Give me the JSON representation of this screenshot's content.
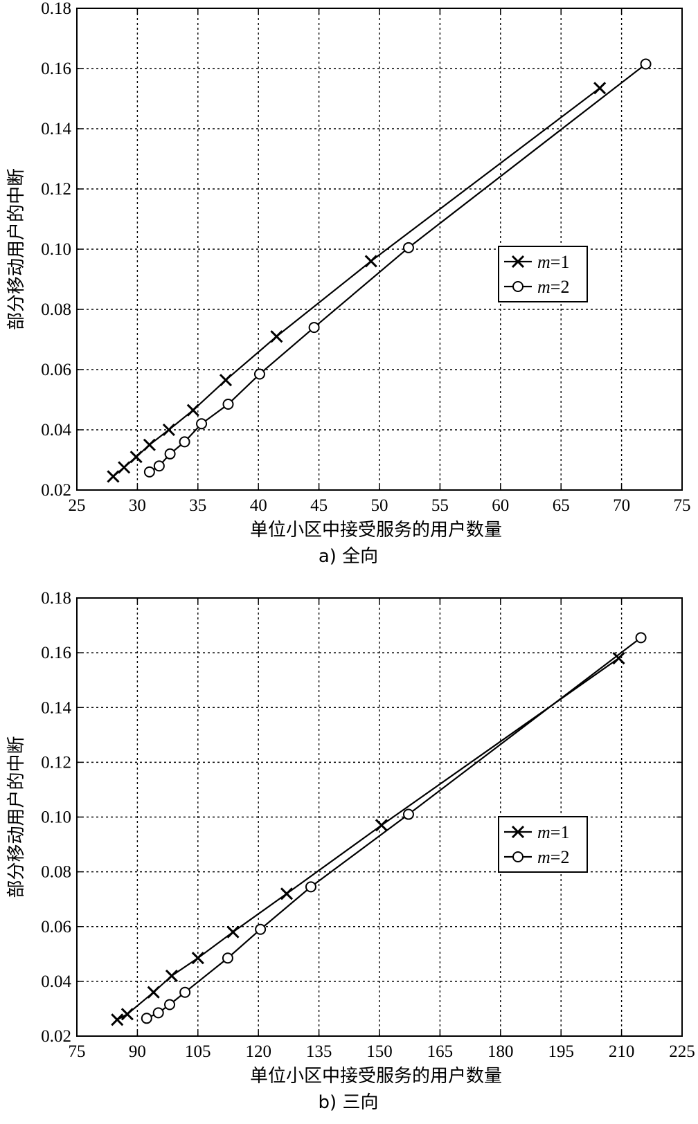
{
  "chart_data": [
    {
      "type": "line",
      "caption": "a) 全向",
      "xlabel": "单位小区中接受服务的用户数量",
      "ylabel": "部分移动用户的中断",
      "xlim": [
        25,
        75
      ],
      "ylim": [
        0.02,
        0.18
      ],
      "xticks": [
        25,
        30,
        35,
        40,
        45,
        50,
        55,
        60,
        65,
        70,
        75
      ],
      "yticks": [
        0.02,
        0.04,
        0.06,
        0.08,
        0.1,
        0.12,
        0.14,
        0.16,
        0.18
      ],
      "xtick_labels": [
        "25",
        "30",
        "35",
        "40",
        "45",
        "50",
        "55",
        "60",
        "65",
        "70",
        "75"
      ],
      "ytick_labels": [
        "0.02",
        "0.04",
        "0.06",
        "0.08",
        "0.10",
        "0.12",
        "0.14",
        "0.16",
        "0.18"
      ],
      "grid": true,
      "legend_position": "center-right",
      "series": [
        {
          "name_prefix": "m",
          "name_suffix": "=1",
          "marker": "x",
          "x": [
            28.0,
            28.9,
            29.9,
            31.0,
            32.6,
            34.6,
            37.3,
            41.5,
            49.3,
            68.2
          ],
          "y": [
            0.0245,
            0.0275,
            0.031,
            0.035,
            0.04,
            0.0465,
            0.0565,
            0.071,
            0.096,
            0.1535
          ]
        },
        {
          "name_prefix": "m",
          "name_suffix": "=2",
          "marker": "o",
          "x": [
            31.0,
            31.8,
            32.7,
            33.9,
            35.3,
            37.5,
            40.1,
            44.6,
            52.4,
            72.0
          ],
          "y": [
            0.026,
            0.028,
            0.032,
            0.036,
            0.042,
            0.0485,
            0.0585,
            0.074,
            0.1005,
            0.1615
          ]
        }
      ]
    },
    {
      "type": "line",
      "caption": "b) 三向",
      "xlabel": "单位小区中接受服务的用户数量",
      "ylabel": "部分移动用户的中断",
      "xlim": [
        75,
        225
      ],
      "ylim": [
        0.02,
        0.18
      ],
      "xticks": [
        75,
        90,
        105,
        120,
        135,
        150,
        165,
        180,
        195,
        210,
        225
      ],
      "yticks": [
        0.02,
        0.04,
        0.06,
        0.08,
        0.1,
        0.12,
        0.14,
        0.16,
        0.18
      ],
      "xtick_labels": [
        "75",
        "90",
        "105",
        "120",
        "135",
        "150",
        "165",
        "180",
        "195",
        "210",
        "225"
      ],
      "ytick_labels": [
        "0.02",
        "0.04",
        "0.06",
        "0.08",
        "0.10",
        "0.12",
        "0.14",
        "0.16",
        "0.18"
      ],
      "grid": true,
      "legend_position": "center-right",
      "series": [
        {
          "name_prefix": "m",
          "name_suffix": "=1",
          "marker": "x",
          "x": [
            85.0,
            87.5,
            94.0,
            98.5,
            105.0,
            113.7,
            127.0,
            150.5,
            209.3
          ],
          "y": [
            0.026,
            0.028,
            0.036,
            0.042,
            0.0485,
            0.058,
            0.072,
            0.097,
            0.158
          ]
        },
        {
          "name_prefix": "m",
          "name_suffix": "=2",
          "marker": "o",
          "x": [
            92.3,
            95.2,
            98.0,
            101.8,
            112.4,
            120.5,
            133.0,
            157.2,
            214.8
          ],
          "y": [
            0.0265,
            0.0285,
            0.0315,
            0.036,
            0.0485,
            0.059,
            0.0745,
            0.101,
            0.1655
          ]
        }
      ]
    }
  ]
}
